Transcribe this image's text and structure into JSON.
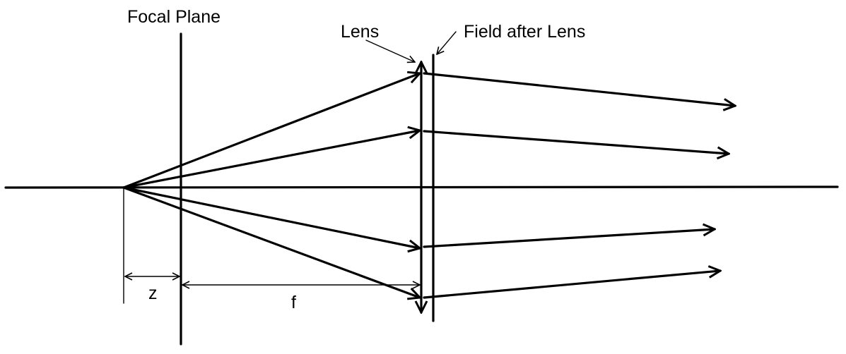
{
  "labels": {
    "focal_plane": "Focal Plane",
    "lens": "Lens",
    "field_after_lens": "Field after Lens",
    "z": "z",
    "f": "f"
  },
  "colors": {
    "line": "#000000",
    "background": "#ffffff"
  }
}
